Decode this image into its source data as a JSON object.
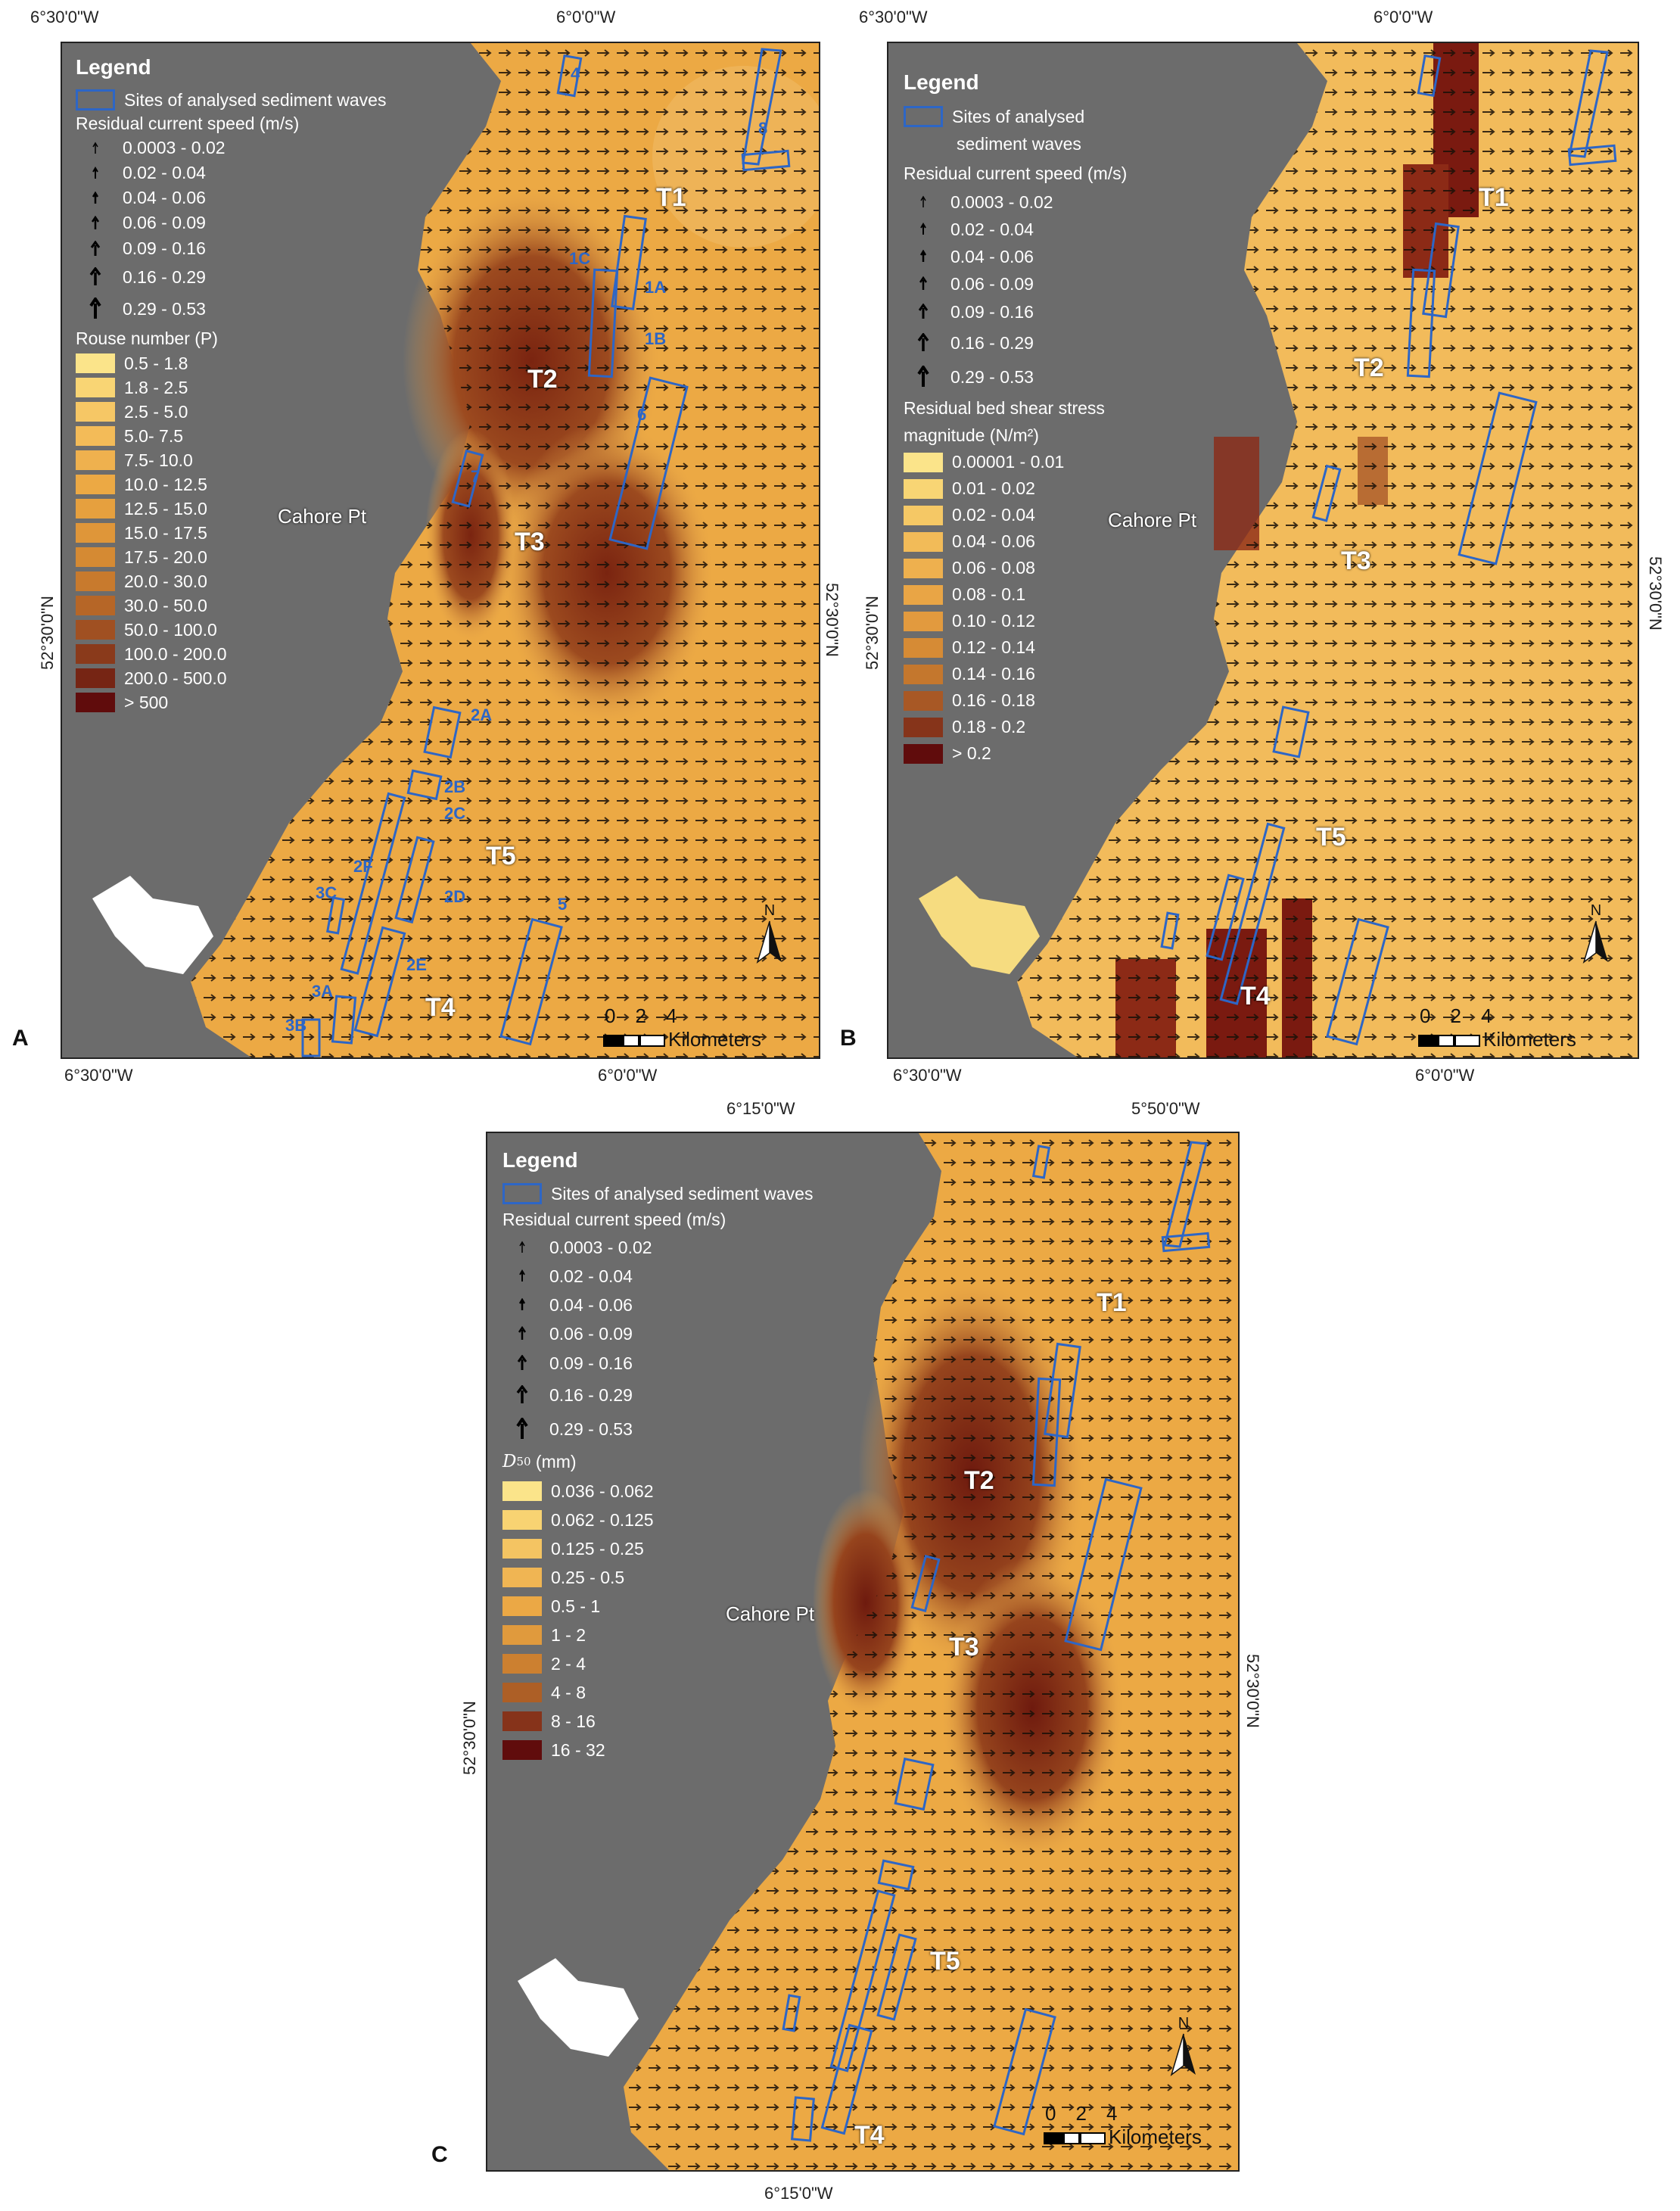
{
  "panels": [
    {
      "id": "A",
      "coords": {
        "top_left": "6°30'0\"W",
        "top_mid": "6°0'0\"W",
        "bottom_left": "6°30'0\"W",
        "bottom_mid": "6°0'0\"W",
        "left": "52°30'0\"N",
        "right": "52°30'0\"N"
      },
      "legend": {
        "title": "Legend",
        "sites_label": "Sites of analysed sediment waves",
        "speed_title": "Residual current speed (m/s)",
        "speed_classes": [
          "0.0003 - 0.02",
          "0.02 - 0.04",
          "0.04 - 0.06",
          "0.06 - 0.09",
          "0.09 - 0.16",
          "0.16 - 0.29",
          "0.29 - 0.53"
        ],
        "color_title": "Rouse number (P)",
        "color_classes": [
          "0.5 - 1.8",
          "1.8 - 2.5",
          "2.5 - 5.0",
          "5.0- 7.5",
          "7.5- 10.0",
          "10.0 - 12.5",
          "12.5 - 15.0",
          "15.0 - 17.5",
          "17.5 - 20.0",
          "20.0 - 30.0",
          "30.0 - 50.0",
          "50.0 - 100.0",
          "100.0 - 200.0",
          "200.0 - 500.0",
          "> 500"
        ]
      },
      "map_labels": [
        "T1",
        "T2",
        "T3",
        "T4",
        "T5"
      ],
      "site_labels": [
        "4",
        "8",
        "1C",
        "1A",
        "1B",
        "6",
        "7",
        "2A",
        "2B",
        "2C",
        "2F",
        "2D",
        "3C",
        "2E",
        "5",
        "3A",
        "3B"
      ],
      "place": "Cahore Pt",
      "scale_numbers": [
        "0",
        "2",
        "4"
      ],
      "scale_unit": "Kilometers",
      "north": "N"
    },
    {
      "id": "B",
      "coords": {
        "top_left": "6°30'0\"W",
        "top_mid": "6°0'0\"W",
        "bottom_left": "6°30'0\"W",
        "bottom_mid": "6°0'0\"W",
        "left": "52°30'0\"N",
        "right": "52°30'0\"N"
      },
      "legend": {
        "title": "Legend",
        "sites_label_1": "Sites of analysed",
        "sites_label_2": "sediment waves",
        "speed_title": "Residual current speed (m/s)",
        "speed_classes": [
          "0.0003 - 0.02",
          "0.02 - 0.04",
          "0.04 - 0.06",
          "0.06 - 0.09",
          "0.09 - 0.16",
          "0.16 - 0.29",
          "0.29 - 0.53"
        ],
        "color_title_1": "Residual bed shear stress",
        "color_title_2": "magnitude (N/m²)",
        "color_classes": [
          "0.00001 - 0.01",
          "0.01 - 0.02",
          "0.02 - 0.04",
          "0.04 - 0.06",
          "0.06 - 0.08",
          "0.08 - 0.1",
          "0.10 - 0.12",
          "0.12 - 0.14",
          "0.14 - 0.16",
          "0.16 - 0.18",
          "0.18 - 0.2",
          "> 0.2"
        ]
      },
      "map_labels": [
        "T1",
        "T2",
        "T3",
        "T4",
        "T5"
      ],
      "place": "Cahore Pt",
      "scale_numbers": [
        "0",
        "2",
        "4"
      ],
      "scale_unit": "Kilometers",
      "north": "N"
    },
    {
      "id": "C",
      "coords": {
        "top_left": "6°15'0\"W",
        "top_mid": "5°50'0\"W",
        "bottom_left": "6°15'0\"W",
        "left": "52°30'0\"N",
        "right": "52°30'0\"N"
      },
      "legend": {
        "title": "Legend",
        "sites_label": "Sites of analysed sediment waves",
        "speed_title": "Residual current speed (m/s)",
        "speed_classes": [
          "0.0003 - 0.02",
          "0.02 - 0.04",
          "0.04 - 0.06",
          "0.06 - 0.09",
          "0.09 - 0.16",
          "0.16 - 0.29",
          "0.29 - 0.53"
        ],
        "color_title_sym": "D",
        "color_title_sub": "50",
        "color_title_unit": " (mm)",
        "color_classes": [
          "0.036 - 0.062",
          "0.062 - 0.125",
          "0.125 - 0.25",
          "0.25 - 0.5",
          "0.5 - 1",
          "1 - 2",
          "2 - 4",
          "4 - 8",
          "8 - 16",
          "16 - 32"
        ]
      },
      "map_labels": [
        "T1",
        "T2",
        "T3",
        "T4",
        "T5"
      ],
      "place": "Cahore Pt",
      "scale_numbers": [
        "0",
        "2",
        "4"
      ],
      "scale_unit": "Kilometers",
      "north": "N"
    }
  ],
  "colors": {
    "land": "#6c6c6c",
    "site_outline": "#2d66c6",
    "ramp_light": "#fbe48a",
    "ramp_mid": "#eba43c",
    "ramp_dark": "#6b0f0a"
  }
}
